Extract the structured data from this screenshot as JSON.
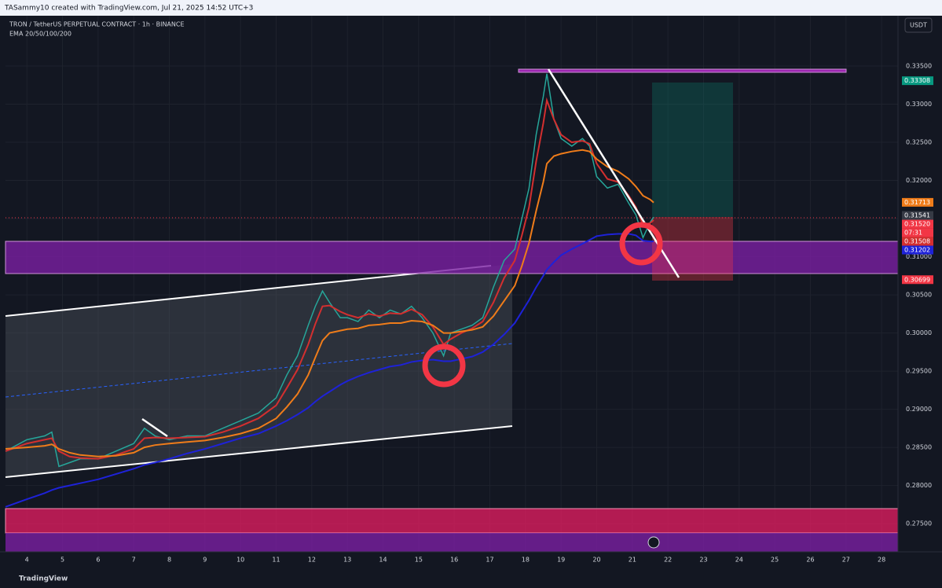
{
  "chart_data": {
    "type": "line",
    "header": "TASammy10 created with TradingView.com, Jul 21, 2025 14:52 UTC+3",
    "title": "TRON / TetherUS PERPETUAL CONTRACT · 1h · BINANCE",
    "subtitle": "EMA 20/50/100/200",
    "currency": "USDT",
    "footer": "TradingView",
    "countdown": "07:31",
    "x": [
      3.4,
      4,
      4.5,
      4.7,
      4.9,
      5.2,
      5.5,
      6,
      6.5,
      7,
      7.3,
      7.6,
      8,
      8.5,
      9,
      9.5,
      10,
      10.5,
      11,
      11.3,
      11.6,
      11.9,
      12.1,
      12.3,
      12.5,
      12.8,
      13,
      13.3,
      13.6,
      13.9,
      14.2,
      14.5,
      14.8,
      15.1,
      15.4,
      15.7,
      15.9,
      16.2,
      16.5,
      16.8,
      17.1,
      17.4,
      17.7,
      17.9,
      18.1,
      18.3,
      18.5,
      18.6,
      18.8,
      19,
      19.3,
      19.6,
      19.8,
      20,
      20.3,
      20.6,
      20.9,
      21.1,
      21.3,
      21.5,
      21.6
    ],
    "series": [
      {
        "name": "TRON / TetherUS PERPETUAL CONTRACT · 1h · BINANCE",
        "color": "#26a69a",
        "values": [
          0.2845,
          0.286,
          0.2865,
          0.287,
          0.2825,
          0.283,
          0.2835,
          0.2835,
          0.2845,
          0.2855,
          0.2875,
          0.2865,
          0.286,
          0.2865,
          0.2865,
          0.2875,
          0.2885,
          0.2895,
          0.2915,
          0.2945,
          0.297,
          0.301,
          0.3035,
          0.3055,
          0.304,
          0.302,
          0.302,
          0.3015,
          0.303,
          0.302,
          0.303,
          0.3025,
          0.3035,
          0.302,
          0.3,
          0.297,
          0.3,
          0.3005,
          0.301,
          0.302,
          0.306,
          0.3095,
          0.311,
          0.315,
          0.319,
          0.326,
          0.331,
          0.334,
          0.328,
          0.3255,
          0.3245,
          0.3255,
          0.3245,
          0.3205,
          0.319,
          0.3195,
          0.317,
          0.3155,
          0.3125,
          0.3145,
          0.3152
        ]
      },
      {
        "color": "#d32f2f",
        "values": [
          0.2845,
          0.2855,
          0.286,
          0.2862,
          0.2845,
          0.2838,
          0.2836,
          0.2835,
          0.284,
          0.2848,
          0.2862,
          0.2863,
          0.2862,
          0.2863,
          0.2864,
          0.287,
          0.2878,
          0.2888,
          0.2905,
          0.2928,
          0.2952,
          0.2985,
          0.3012,
          0.3035,
          0.3036,
          0.3028,
          0.3024,
          0.302,
          0.3025,
          0.3022,
          0.3026,
          0.3025,
          0.3031,
          0.3024,
          0.3008,
          0.2985,
          0.2992,
          0.3,
          0.3006,
          0.3015,
          0.304,
          0.3072,
          0.3095,
          0.3128,
          0.3165,
          0.3225,
          0.3275,
          0.3305,
          0.328,
          0.326,
          0.325,
          0.3252,
          0.3248,
          0.3222,
          0.3202,
          0.3198,
          0.318,
          0.3165,
          0.3142,
          0.3144,
          0.3148
        ]
      },
      {
        "color": "#ef7c1a",
        "values": [
          0.2848,
          0.285,
          0.2852,
          0.2854,
          0.2848,
          0.2843,
          0.284,
          0.2838,
          0.2839,
          0.2843,
          0.285,
          0.2853,
          0.2855,
          0.2857,
          0.2859,
          0.2863,
          0.2868,
          0.2875,
          0.2888,
          0.2903,
          0.292,
          0.2945,
          0.2968,
          0.299,
          0.3,
          0.3003,
          0.3005,
          0.3006,
          0.301,
          0.3011,
          0.3013,
          0.3013,
          0.3016,
          0.3015,
          0.301,
          0.3,
          0.3,
          0.3002,
          0.3004,
          0.3008,
          0.3022,
          0.3042,
          0.3062,
          0.3088,
          0.3118,
          0.316,
          0.3198,
          0.3222,
          0.3232,
          0.3235,
          0.3238,
          0.324,
          0.3238,
          0.3228,
          0.3218,
          0.3212,
          0.3202,
          0.3192,
          0.318,
          0.3175,
          0.3171
        ]
      },
      {
        "color": "#1e22d8",
        "values": [
          0.2772,
          0.2782,
          0.279,
          0.2794,
          0.2797,
          0.28,
          0.2803,
          0.2808,
          0.2815,
          0.2822,
          0.2827,
          0.283,
          0.2835,
          0.2842,
          0.2848,
          0.2855,
          0.2862,
          0.2868,
          0.2878,
          0.2885,
          0.2893,
          0.2902,
          0.291,
          0.2917,
          0.2923,
          0.2932,
          0.2937,
          0.2943,
          0.2948,
          0.2952,
          0.2956,
          0.2958,
          0.2962,
          0.2964,
          0.2965,
          0.2963,
          0.2963,
          0.2966,
          0.2969,
          0.2975,
          0.2985,
          0.2998,
          0.3013,
          0.3028,
          0.3043,
          0.306,
          0.3075,
          0.3083,
          0.3093,
          0.3102,
          0.311,
          0.3117,
          0.3122,
          0.3127,
          0.3129,
          0.313,
          0.313,
          0.3128,
          0.3121,
          0.312,
          0.312
        ]
      }
    ],
    "xlim": [
      3.4,
      28.46
    ],
    "xticks": [
      4,
      5,
      6,
      7,
      8,
      9,
      10,
      11,
      12,
      13,
      14,
      15,
      16,
      17,
      18,
      19,
      20,
      21,
      22,
      23,
      24,
      25,
      26,
      27,
      28
    ],
    "ylim": [
      0.2713,
      0.3416
    ],
    "yticks": [
      {
        "value": 0.275,
        "label": "0.27500"
      },
      {
        "value": 0.28,
        "label": "0.28000"
      },
      {
        "value": 0.285,
        "label": "0.28500"
      },
      {
        "value": 0.29,
        "label": "0.29000"
      },
      {
        "value": 0.295,
        "label": "0.29500"
      },
      {
        "value": 0.3,
        "label": "0.30000"
      },
      {
        "value": 0.305,
        "label": "0.30500"
      },
      {
        "value": 0.31,
        "label": "0.31000"
      },
      {
        "value": 0.315,
        "label": "0.31500"
      },
      {
        "value": 0.32,
        "label": "0.32000"
      },
      {
        "value": 0.325,
        "label": "0.32500"
      },
      {
        "value": 0.33,
        "label": "0.33000"
      },
      {
        "value": 0.335,
        "label": "0.33500"
      }
    ],
    "grid": true,
    "price_labels": [
      {
        "value": 0.33308,
        "label": "0.33308",
        "color": "#089981"
      },
      {
        "value": 0.31713,
        "label": "0.31713",
        "color": "#ef7c1a"
      },
      {
        "value": 0.31541,
        "label": "0.31541",
        "color": "#363a45"
      },
      {
        "value": 0.3152,
        "label": "0.31520",
        "color": "#f23645"
      },
      {
        "value": 0.31508,
        "label": "0.31508",
        "color": "#d32f2f"
      },
      {
        "value": 0.31202,
        "label": "0.31202",
        "color": "#1e22d8"
      },
      {
        "value": 0.30699,
        "label": "0.30699",
        "color": "#f23645"
      }
    ]
  }
}
